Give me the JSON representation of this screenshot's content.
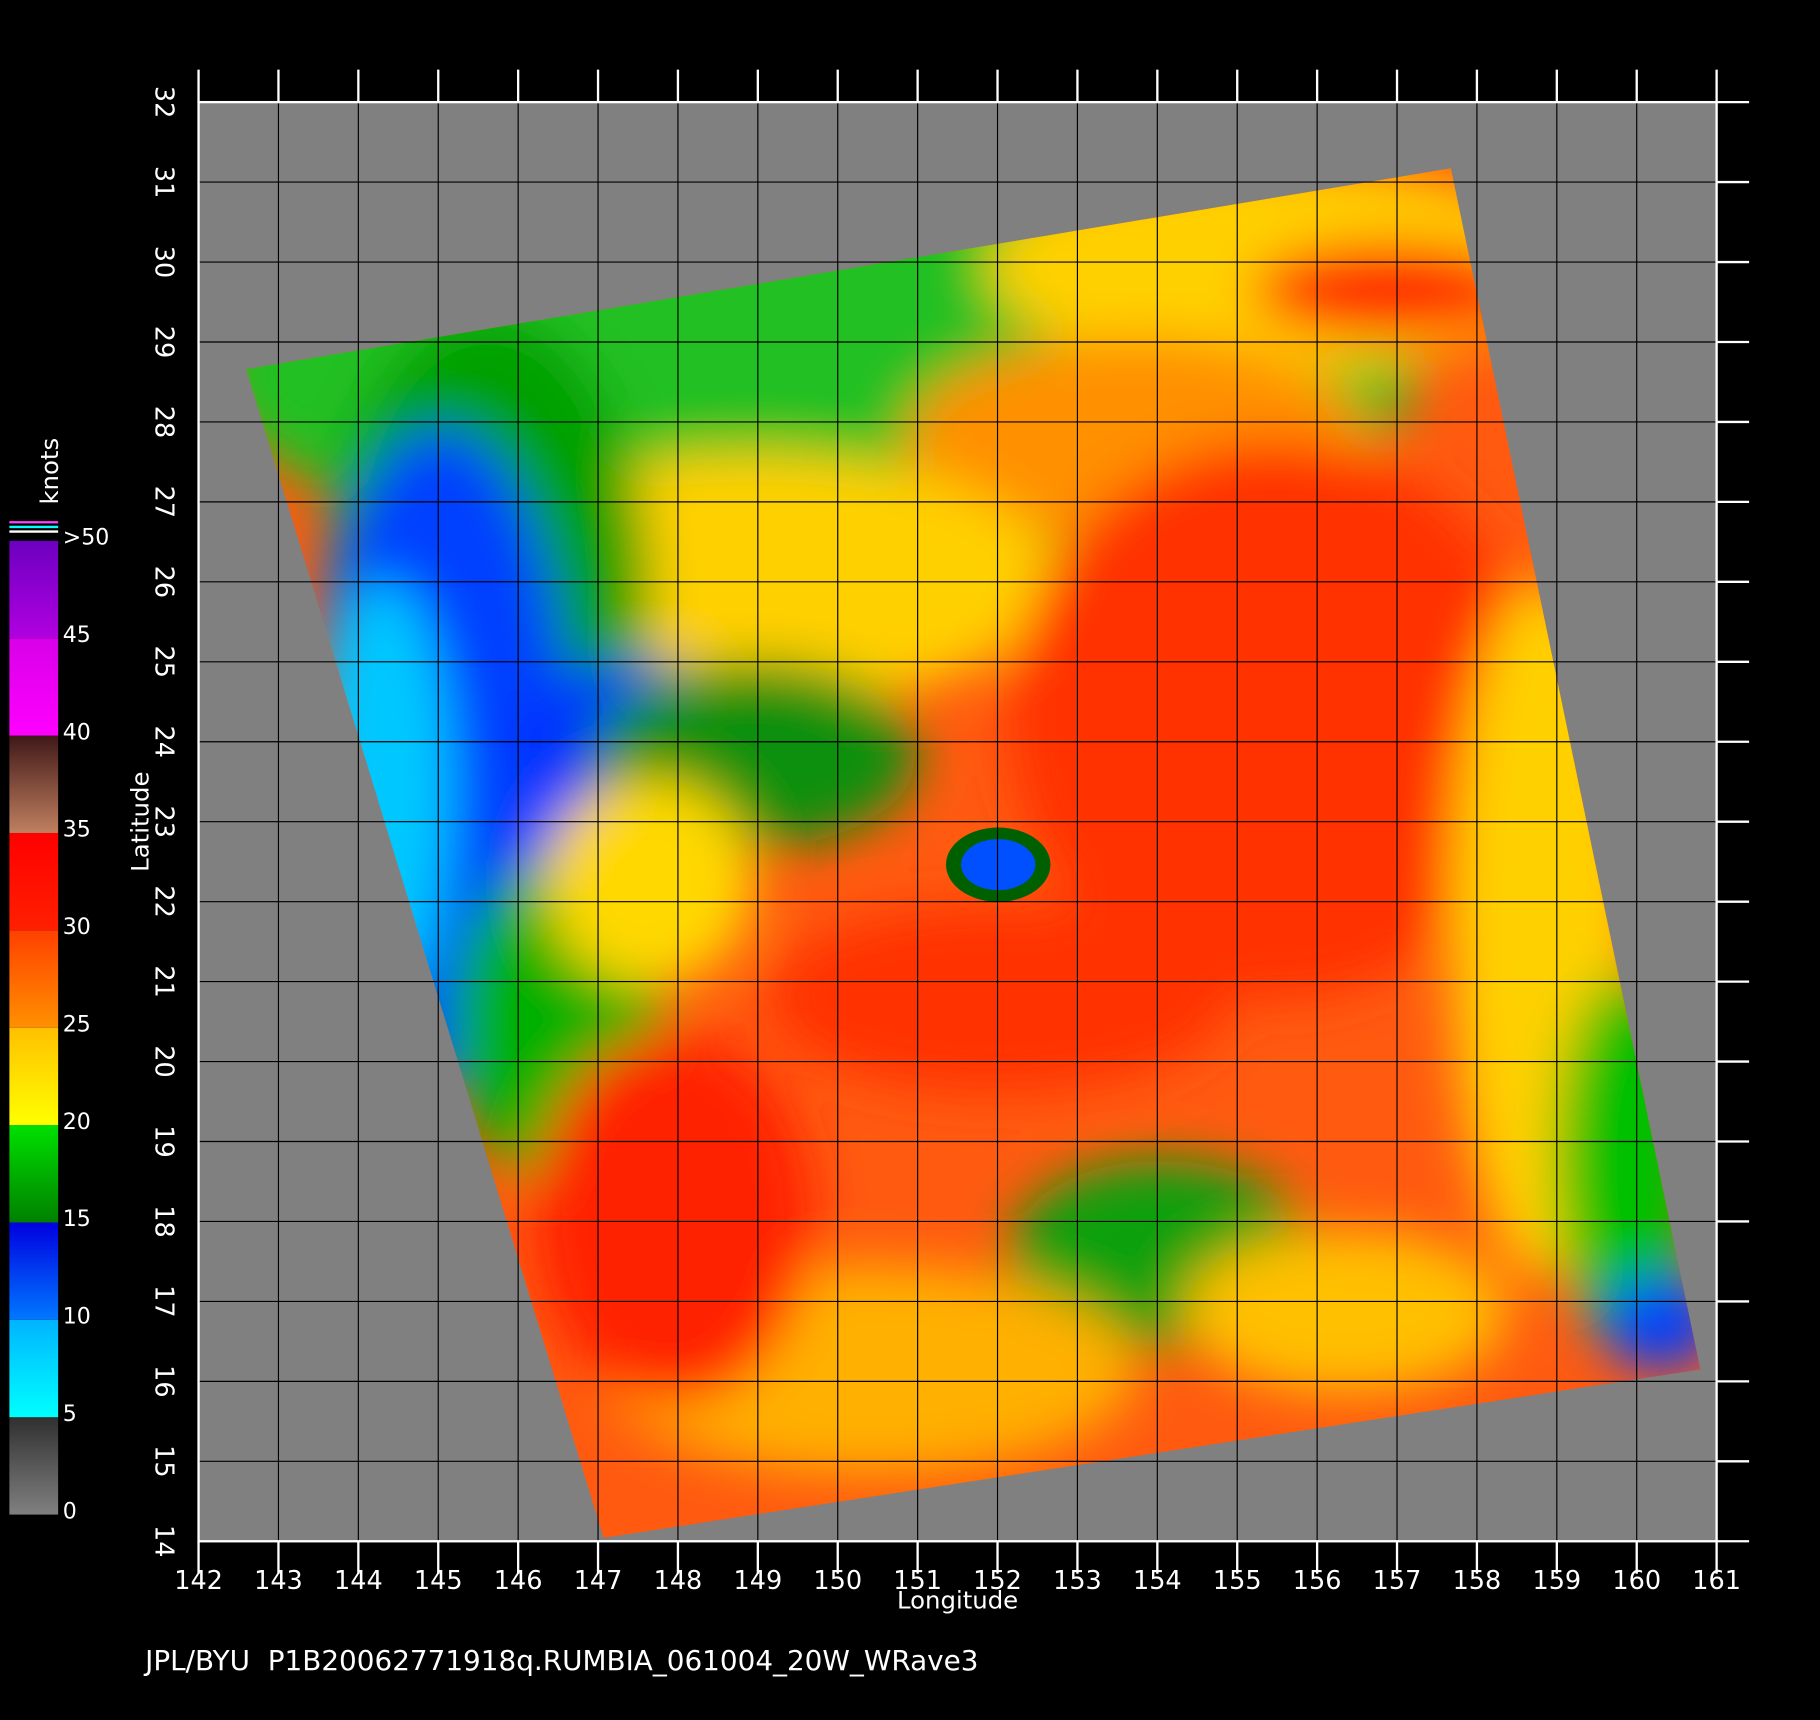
{
  "chart_data": {
    "type": "map",
    "title": "JPL/BYU  P1B20062771918q.RUMBIA_061004_20W_WRave3",
    "xlabel": "Longitude",
    "ylabel": "Latitude",
    "xlim": [
      142,
      161
    ],
    "ylim": [
      14,
      32
    ],
    "xticks": [
      142,
      143,
      144,
      145,
      146,
      147,
      148,
      149,
      150,
      151,
      152,
      153,
      154,
      155,
      156,
      157,
      158,
      159,
      160,
      161
    ],
    "yticks": [
      14,
      15,
      16,
      17,
      18,
      19,
      20,
      21,
      22,
      23,
      24,
      25,
      26,
      27,
      28,
      29,
      30,
      31,
      32
    ],
    "grid": true,
    "colorbar": {
      "label": "knots",
      "lim": [
        0,
        50
      ],
      "ticks": [
        0,
        5,
        10,
        15,
        20,
        25,
        30,
        35,
        40,
        45,
        {
          "value": 50,
          "label": ">50"
        }
      ],
      "colors": [
        [
          "#808080",
          "#303030"
        ],
        [
          "#00ffff",
          "#00b4ff"
        ],
        [
          "#0078ff",
          "#0000e0"
        ],
        [
          "#008000",
          "#00e000"
        ],
        [
          "#ffff00",
          "#ffc000"
        ],
        [
          "#ff9000",
          "#ff4000"
        ],
        [
          "#ff2000",
          "#ff0000"
        ],
        [
          "#c08060",
          "#401818"
        ],
        [
          "#ff00ff",
          "#d800e8"
        ],
        [
          "#b000e0",
          "#6c00c0"
        ]
      ]
    }
  }
}
